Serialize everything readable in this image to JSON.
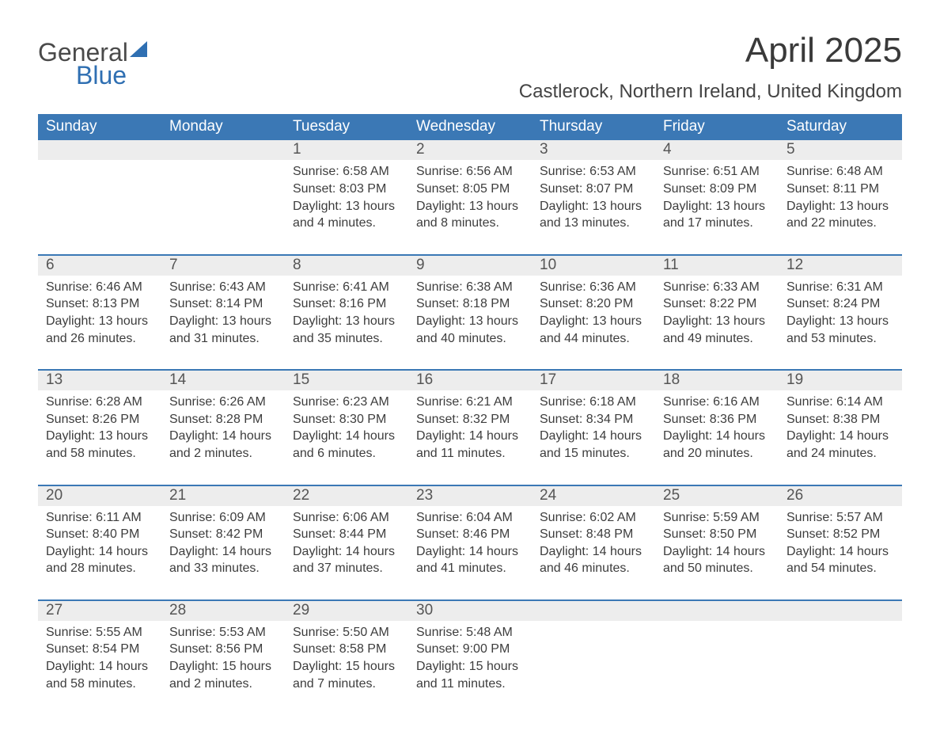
{
  "brand": {
    "part1": "General",
    "part2": "Blue",
    "sail_color": "#2f6fb2"
  },
  "title": "April 2025",
  "location": "Castlerock, Northern Ireland, United Kingdom",
  "colors": {
    "header_bg": "#3b78b5",
    "header_text": "#ffffff",
    "daynum_bg": "#ededed",
    "week_border": "#3b78b5"
  },
  "day_headers": [
    "Sunday",
    "Monday",
    "Tuesday",
    "Wednesday",
    "Thursday",
    "Friday",
    "Saturday"
  ],
  "weeks": [
    [
      {
        "n": "",
        "sunrise": "",
        "sunset": "",
        "daylight": ""
      },
      {
        "n": "",
        "sunrise": "",
        "sunset": "",
        "daylight": ""
      },
      {
        "n": "1",
        "sunrise": "Sunrise: 6:58 AM",
        "sunset": "Sunset: 8:03 PM",
        "daylight": "Daylight: 13 hours and 4 minutes."
      },
      {
        "n": "2",
        "sunrise": "Sunrise: 6:56 AM",
        "sunset": "Sunset: 8:05 PM",
        "daylight": "Daylight: 13 hours and 8 minutes."
      },
      {
        "n": "3",
        "sunrise": "Sunrise: 6:53 AM",
        "sunset": "Sunset: 8:07 PM",
        "daylight": "Daylight: 13 hours and 13 minutes."
      },
      {
        "n": "4",
        "sunrise": "Sunrise: 6:51 AM",
        "sunset": "Sunset: 8:09 PM",
        "daylight": "Daylight: 13 hours and 17 minutes."
      },
      {
        "n": "5",
        "sunrise": "Sunrise: 6:48 AM",
        "sunset": "Sunset: 8:11 PM",
        "daylight": "Daylight: 13 hours and 22 minutes."
      }
    ],
    [
      {
        "n": "6",
        "sunrise": "Sunrise: 6:46 AM",
        "sunset": "Sunset: 8:13 PM",
        "daylight": "Daylight: 13 hours and 26 minutes."
      },
      {
        "n": "7",
        "sunrise": "Sunrise: 6:43 AM",
        "sunset": "Sunset: 8:14 PM",
        "daylight": "Daylight: 13 hours and 31 minutes."
      },
      {
        "n": "8",
        "sunrise": "Sunrise: 6:41 AM",
        "sunset": "Sunset: 8:16 PM",
        "daylight": "Daylight: 13 hours and 35 minutes."
      },
      {
        "n": "9",
        "sunrise": "Sunrise: 6:38 AM",
        "sunset": "Sunset: 8:18 PM",
        "daylight": "Daylight: 13 hours and 40 minutes."
      },
      {
        "n": "10",
        "sunrise": "Sunrise: 6:36 AM",
        "sunset": "Sunset: 8:20 PM",
        "daylight": "Daylight: 13 hours and 44 minutes."
      },
      {
        "n": "11",
        "sunrise": "Sunrise: 6:33 AM",
        "sunset": "Sunset: 8:22 PM",
        "daylight": "Daylight: 13 hours and 49 minutes."
      },
      {
        "n": "12",
        "sunrise": "Sunrise: 6:31 AM",
        "sunset": "Sunset: 8:24 PM",
        "daylight": "Daylight: 13 hours and 53 minutes."
      }
    ],
    [
      {
        "n": "13",
        "sunrise": "Sunrise: 6:28 AM",
        "sunset": "Sunset: 8:26 PM",
        "daylight": "Daylight: 13 hours and 58 minutes."
      },
      {
        "n": "14",
        "sunrise": "Sunrise: 6:26 AM",
        "sunset": "Sunset: 8:28 PM",
        "daylight": "Daylight: 14 hours and 2 minutes."
      },
      {
        "n": "15",
        "sunrise": "Sunrise: 6:23 AM",
        "sunset": "Sunset: 8:30 PM",
        "daylight": "Daylight: 14 hours and 6 minutes."
      },
      {
        "n": "16",
        "sunrise": "Sunrise: 6:21 AM",
        "sunset": "Sunset: 8:32 PM",
        "daylight": "Daylight: 14 hours and 11 minutes."
      },
      {
        "n": "17",
        "sunrise": "Sunrise: 6:18 AM",
        "sunset": "Sunset: 8:34 PM",
        "daylight": "Daylight: 14 hours and 15 minutes."
      },
      {
        "n": "18",
        "sunrise": "Sunrise: 6:16 AM",
        "sunset": "Sunset: 8:36 PM",
        "daylight": "Daylight: 14 hours and 20 minutes."
      },
      {
        "n": "19",
        "sunrise": "Sunrise: 6:14 AM",
        "sunset": "Sunset: 8:38 PM",
        "daylight": "Daylight: 14 hours and 24 minutes."
      }
    ],
    [
      {
        "n": "20",
        "sunrise": "Sunrise: 6:11 AM",
        "sunset": "Sunset: 8:40 PM",
        "daylight": "Daylight: 14 hours and 28 minutes."
      },
      {
        "n": "21",
        "sunrise": "Sunrise: 6:09 AM",
        "sunset": "Sunset: 8:42 PM",
        "daylight": "Daylight: 14 hours and 33 minutes."
      },
      {
        "n": "22",
        "sunrise": "Sunrise: 6:06 AM",
        "sunset": "Sunset: 8:44 PM",
        "daylight": "Daylight: 14 hours and 37 minutes."
      },
      {
        "n": "23",
        "sunrise": "Sunrise: 6:04 AM",
        "sunset": "Sunset: 8:46 PM",
        "daylight": "Daylight: 14 hours and 41 minutes."
      },
      {
        "n": "24",
        "sunrise": "Sunrise: 6:02 AM",
        "sunset": "Sunset: 8:48 PM",
        "daylight": "Daylight: 14 hours and 46 minutes."
      },
      {
        "n": "25",
        "sunrise": "Sunrise: 5:59 AM",
        "sunset": "Sunset: 8:50 PM",
        "daylight": "Daylight: 14 hours and 50 minutes."
      },
      {
        "n": "26",
        "sunrise": "Sunrise: 5:57 AM",
        "sunset": "Sunset: 8:52 PM",
        "daylight": "Daylight: 14 hours and 54 minutes."
      }
    ],
    [
      {
        "n": "27",
        "sunrise": "Sunrise: 5:55 AM",
        "sunset": "Sunset: 8:54 PM",
        "daylight": "Daylight: 14 hours and 58 minutes."
      },
      {
        "n": "28",
        "sunrise": "Sunrise: 5:53 AM",
        "sunset": "Sunset: 8:56 PM",
        "daylight": "Daylight: 15 hours and 2 minutes."
      },
      {
        "n": "29",
        "sunrise": "Sunrise: 5:50 AM",
        "sunset": "Sunset: 8:58 PM",
        "daylight": "Daylight: 15 hours and 7 minutes."
      },
      {
        "n": "30",
        "sunrise": "Sunrise: 5:48 AM",
        "sunset": "Sunset: 9:00 PM",
        "daylight": "Daylight: 15 hours and 11 minutes."
      },
      {
        "n": "",
        "sunrise": "",
        "sunset": "",
        "daylight": ""
      },
      {
        "n": "",
        "sunrise": "",
        "sunset": "",
        "daylight": ""
      },
      {
        "n": "",
        "sunrise": "",
        "sunset": "",
        "daylight": ""
      }
    ]
  ]
}
